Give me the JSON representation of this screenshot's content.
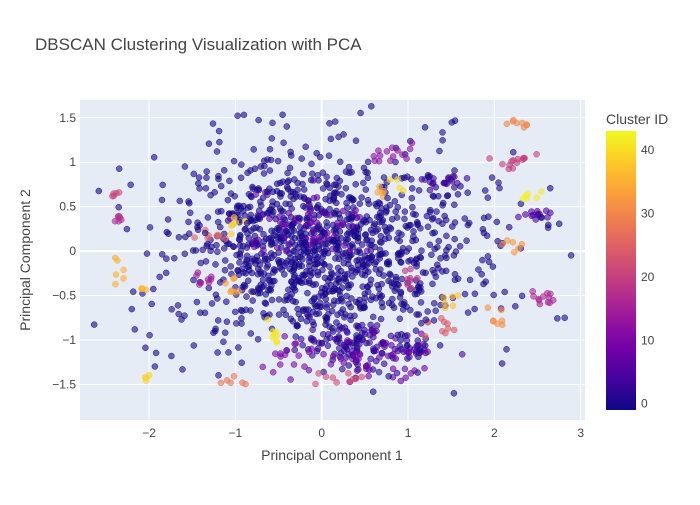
{
  "chart_data": {
    "type": "scatter",
    "title": "DBSCAN Clustering Visualization with PCA",
    "xlabel": "Principal Component 1",
    "ylabel": "Principal Component 2",
    "xlim": [
      -2.8,
      3.05
    ],
    "ylim": [
      -1.9,
      1.7
    ],
    "x_ticks": [
      -2,
      -1,
      0,
      1,
      2,
      3
    ],
    "x_tick_labels": [
      "−2",
      "−1",
      "0",
      "1",
      "2",
      "3"
    ],
    "y_ticks": [
      -1.5,
      -1,
      -0.5,
      0,
      0.5,
      1,
      1.5
    ],
    "y_tick_labels": [
      "−1.5",
      "−1",
      "−0.5",
      "0",
      "0.5",
      "1",
      "1.5"
    ],
    "grid": true,
    "colorbar": {
      "title": "Cluster ID",
      "range": [
        -1,
        43
      ],
      "ticks": [
        0,
        10,
        20,
        30,
        40
      ],
      "tick_labels": [
        "0",
        "10",
        "20",
        "30",
        "40"
      ],
      "colorscale": [
        "#0d0887",
        "#46039f",
        "#7201a8",
        "#9c179e",
        "#bd3786",
        "#d8576b",
        "#ed7953",
        "#fb9f3a",
        "#fdca26",
        "#f0f921"
      ]
    },
    "marker_opacity": 0.6,
    "clusters": [
      {
        "cluster": 0,
        "cx": 0.0,
        "cy": 0.0,
        "sx": 0.9,
        "sy": 0.55,
        "n": 1150
      },
      {
        "cluster": 2,
        "cx": 0.35,
        "cy": -1.05,
        "sx": 0.3,
        "sy": 0.15,
        "n": 90
      },
      {
        "cluster": 4,
        "cx": 1.1,
        "cy": -1.1,
        "sx": 0.2,
        "sy": 0.05,
        "n": 25
      },
      {
        "cluster": 3,
        "cx": 1.4,
        "cy": 0.8,
        "sx": 0.15,
        "sy": 0.05,
        "n": 20
      },
      {
        "cluster": 5,
        "cx": 2.45,
        "cy": 0.4,
        "sx": 0.1,
        "sy": 0.03,
        "n": 14
      },
      {
        "cluster": 7,
        "cx": -0.2,
        "cy": 0.3,
        "sx": 0.35,
        "sy": 0.2,
        "n": 60
      },
      {
        "cluster": 8,
        "cx": 0.6,
        "cy": -1.25,
        "sx": 0.35,
        "sy": 0.15,
        "n": 40
      },
      {
        "cluster": 10,
        "cx": -0.35,
        "cy": -1.2,
        "sx": 0.2,
        "sy": 0.1,
        "n": 15
      },
      {
        "cluster": 12,
        "cx": 0.75,
        "cy": 1.08,
        "sx": 0.15,
        "sy": 0.06,
        "n": 14
      },
      {
        "cluster": 14,
        "cx": -1.35,
        "cy": -0.3,
        "sx": 0.08,
        "sy": 0.05,
        "n": 8
      },
      {
        "cluster": 16,
        "cx": 2.6,
        "cy": -0.55,
        "sx": 0.1,
        "sy": 0.05,
        "n": 12
      },
      {
        "cluster": 17,
        "cx": -2.35,
        "cy": 0.35,
        "sx": 0.03,
        "sy": 0.05,
        "n": 6
      },
      {
        "cluster": 18,
        "cx": 1.05,
        "cy": -0.3,
        "sx": 0.1,
        "sy": 0.1,
        "n": 8
      },
      {
        "cluster": 20,
        "cx": 2.3,
        "cy": 1.0,
        "sx": 0.2,
        "sy": 0.05,
        "n": 14
      },
      {
        "cluster": 21,
        "cx": -2.4,
        "cy": 0.65,
        "sx": 0.03,
        "sy": 0.03,
        "n": 5
      },
      {
        "cluster": 22,
        "cx": 0.25,
        "cy": -1.45,
        "sx": 0.2,
        "sy": 0.05,
        "n": 10
      },
      {
        "cluster": 24,
        "cx": 1.4,
        "cy": -0.85,
        "sx": 0.1,
        "sy": 0.08,
        "n": 10
      },
      {
        "cluster": 25,
        "cx": -1.3,
        "cy": 0.15,
        "sx": 0.1,
        "sy": 0.05,
        "n": 8
      },
      {
        "cluster": 28,
        "cx": -1.0,
        "cy": -1.45,
        "sx": 0.1,
        "sy": 0.03,
        "n": 6
      },
      {
        "cluster": 30,
        "cx": 2.3,
        "cy": 1.43,
        "sx": 0.1,
        "sy": 0.03,
        "n": 8
      },
      {
        "cluster": 31,
        "cx": 2.05,
        "cy": -0.8,
        "sx": 0.08,
        "sy": 0.05,
        "n": 7
      },
      {
        "cluster": 32,
        "cx": 2.25,
        "cy": 0.05,
        "sx": 0.08,
        "sy": 0.03,
        "n": 6
      },
      {
        "cluster": 33,
        "cx": -1.0,
        "cy": -0.4,
        "sx": 0.08,
        "sy": 0.05,
        "n": 7
      },
      {
        "cluster": 34,
        "cx": 0.7,
        "cy": 0.65,
        "sx": 0.05,
        "sy": 0.03,
        "n": 5
      },
      {
        "cluster": 35,
        "cx": -2.35,
        "cy": -0.15,
        "sx": 0.04,
        "sy": 0.1,
        "n": 6
      },
      {
        "cluster": 36,
        "cx": -2.05,
        "cy": -0.38,
        "sx": 0.03,
        "sy": 0.03,
        "n": 4
      },
      {
        "cluster": 37,
        "cx": 1.5,
        "cy": -0.55,
        "sx": 0.08,
        "sy": 0.05,
        "n": 6
      },
      {
        "cluster": 38,
        "cx": -1.0,
        "cy": 0.3,
        "sx": 0.06,
        "sy": 0.05,
        "n": 6
      },
      {
        "cluster": 39,
        "cx": -2.05,
        "cy": -1.42,
        "sx": 0.03,
        "sy": 0.02,
        "n": 4
      },
      {
        "cluster": 40,
        "cx": 0.85,
        "cy": 0.75,
        "sx": 0.05,
        "sy": 0.05,
        "n": 4
      },
      {
        "cluster": 41,
        "cx": -0.55,
        "cy": -0.9,
        "sx": 0.05,
        "sy": 0.08,
        "n": 8
      },
      {
        "cluster": 42,
        "cx": 2.4,
        "cy": 0.62,
        "sx": 0.06,
        "sy": 0.03,
        "n": 6
      },
      {
        "cluster": -1,
        "cx": 0.0,
        "cy": 0.0,
        "sx": 1.4,
        "sy": 0.8,
        "n": 70
      }
    ]
  }
}
